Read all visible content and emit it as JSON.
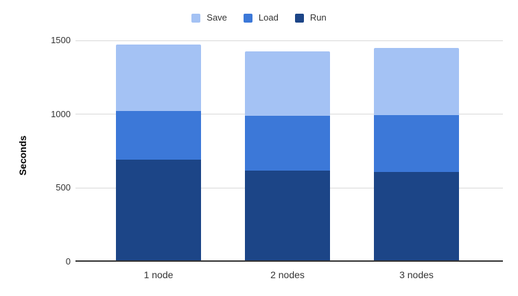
{
  "legend": {
    "items": [
      {
        "label": "Save",
        "color": "#a4c2f4"
      },
      {
        "label": "Load",
        "color": "#3c78d8"
      },
      {
        "label": "Run",
        "color": "#1c4587"
      }
    ]
  },
  "y_axis": {
    "title": "Seconds",
    "ticks": [
      "1500",
      "1000",
      "500",
      "0"
    ]
  },
  "chart_data": {
    "type": "bar",
    "stacked": true,
    "title": "",
    "xlabel": "",
    "ylabel": "Seconds",
    "categories": [
      "1 node",
      "2 nodes",
      "3 nodes"
    ],
    "series": [
      {
        "name": "Run",
        "color": "#1c4587",
        "values": [
          690,
          620,
          610
        ]
      },
      {
        "name": "Load",
        "color": "#3c78d8",
        "values": [
          330,
          370,
          385
        ]
      },
      {
        "name": "Save",
        "color": "#a4c2f4",
        "values": [
          450,
          435,
          455
        ]
      }
    ],
    "totals": [
      1470,
      1425,
      1450
    ],
    "ylim": [
      0,
      1500
    ],
    "yticks": [
      0,
      500,
      1000,
      1500
    ],
    "grid": true,
    "legend_position": "top",
    "legend_order": [
      "Save",
      "Load",
      "Run"
    ]
  }
}
